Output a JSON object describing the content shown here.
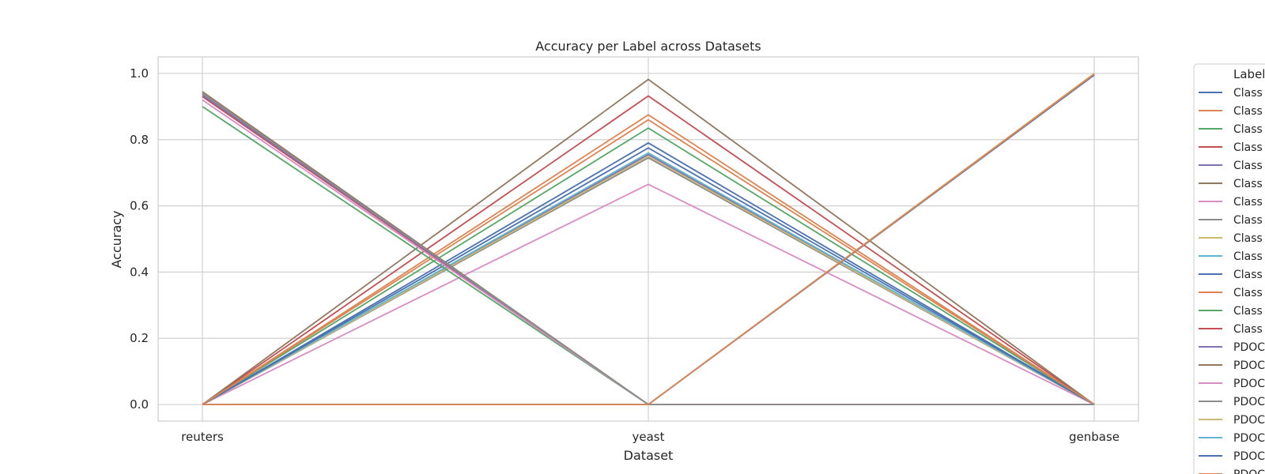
{
  "chart_data": {
    "type": "line",
    "title": "Accuracy per Label across Datasets",
    "xlabel": "Dataset",
    "ylabel": "Accuracy",
    "categories": [
      "reuters",
      "yeast",
      "genbase"
    ],
    "ylim": [
      -0.05,
      1.05
    ],
    "yticks": [
      0.0,
      0.2,
      0.4,
      0.6,
      0.8,
      1.0
    ],
    "ytick_labels": [
      "0.0",
      "0.2",
      "0.4",
      "0.6",
      "0.8",
      "1.0"
    ],
    "grid": true,
    "legend": {
      "title": "Label",
      "placement": "outside-right"
    },
    "series": [
      {
        "name": "Class",
        "color": "#4c72b0",
        "values": [
          0.0,
          0.79,
          0.0
        ]
      },
      {
        "name": "Class",
        "color": "#dd8452",
        "values": [
          0.0,
          0.875,
          0.0
        ]
      },
      {
        "name": "Class",
        "color": "#55a868",
        "values": [
          0.0,
          0.835,
          0.0
        ]
      },
      {
        "name": "Class",
        "color": "#c44e52",
        "values": [
          0.0,
          0.932,
          0.0
        ]
      },
      {
        "name": "Class",
        "color": "#8172b3",
        "values": [
          0.0,
          0.755,
          0.0
        ]
      },
      {
        "name": "Class",
        "color": "#937860",
        "values": [
          0.0,
          0.982,
          0.0
        ]
      },
      {
        "name": "Class",
        "color": "#da8bc3",
        "values": [
          0.0,
          0.665,
          0.0
        ]
      },
      {
        "name": "Class",
        "color": "#8c8c8c",
        "values": [
          0.0,
          0.745,
          0.0
        ]
      },
      {
        "name": "Class",
        "color": "#ccb974",
        "values": [
          0.0,
          0.75,
          0.0
        ]
      },
      {
        "name": "Class",
        "color": "#64b5cd",
        "values": [
          0.0,
          0.76,
          0.0
        ]
      },
      {
        "name": "Class",
        "color": "#4c72b0",
        "values": [
          0.0,
          0.775,
          0.0
        ]
      },
      {
        "name": "Class",
        "color": "#dd8452",
        "values": [
          0.0,
          0.86,
          0.0
        ]
      },
      {
        "name": "Class",
        "color": "#55a868",
        "values": [
          0.9,
          0.0,
          0.0
        ]
      },
      {
        "name": "Class",
        "color": "#c44e52",
        "values": [
          0.93,
          0.0,
          0.0
        ]
      },
      {
        "name": "PDOC",
        "color": "#8172b3",
        "values": [
          0.935,
          0.0,
          0.0
        ]
      },
      {
        "name": "PDOC",
        "color": "#937860",
        "values": [
          0.945,
          0.0,
          0.0
        ]
      },
      {
        "name": "PDOC",
        "color": "#da8bc3",
        "values": [
          0.92,
          0.0,
          0.0
        ]
      },
      {
        "name": "PDOC",
        "color": "#8c8c8c",
        "values": [
          0.94,
          0.0,
          0.0
        ]
      },
      {
        "name": "PDOC",
        "color": "#ccb974",
        "values": [
          0.0,
          0.0,
          1.0
        ]
      },
      {
        "name": "PDOC",
        "color": "#64b5cd",
        "values": [
          0.0,
          0.0,
          0.997
        ]
      },
      {
        "name": "PDOC",
        "color": "#4c72b0",
        "values": [
          0.0,
          0.0,
          0.995
        ]
      },
      {
        "name": "PDOC",
        "color": "#dd8452",
        "values": [
          0.0,
          0.0,
          0.998
        ]
      }
    ]
  }
}
